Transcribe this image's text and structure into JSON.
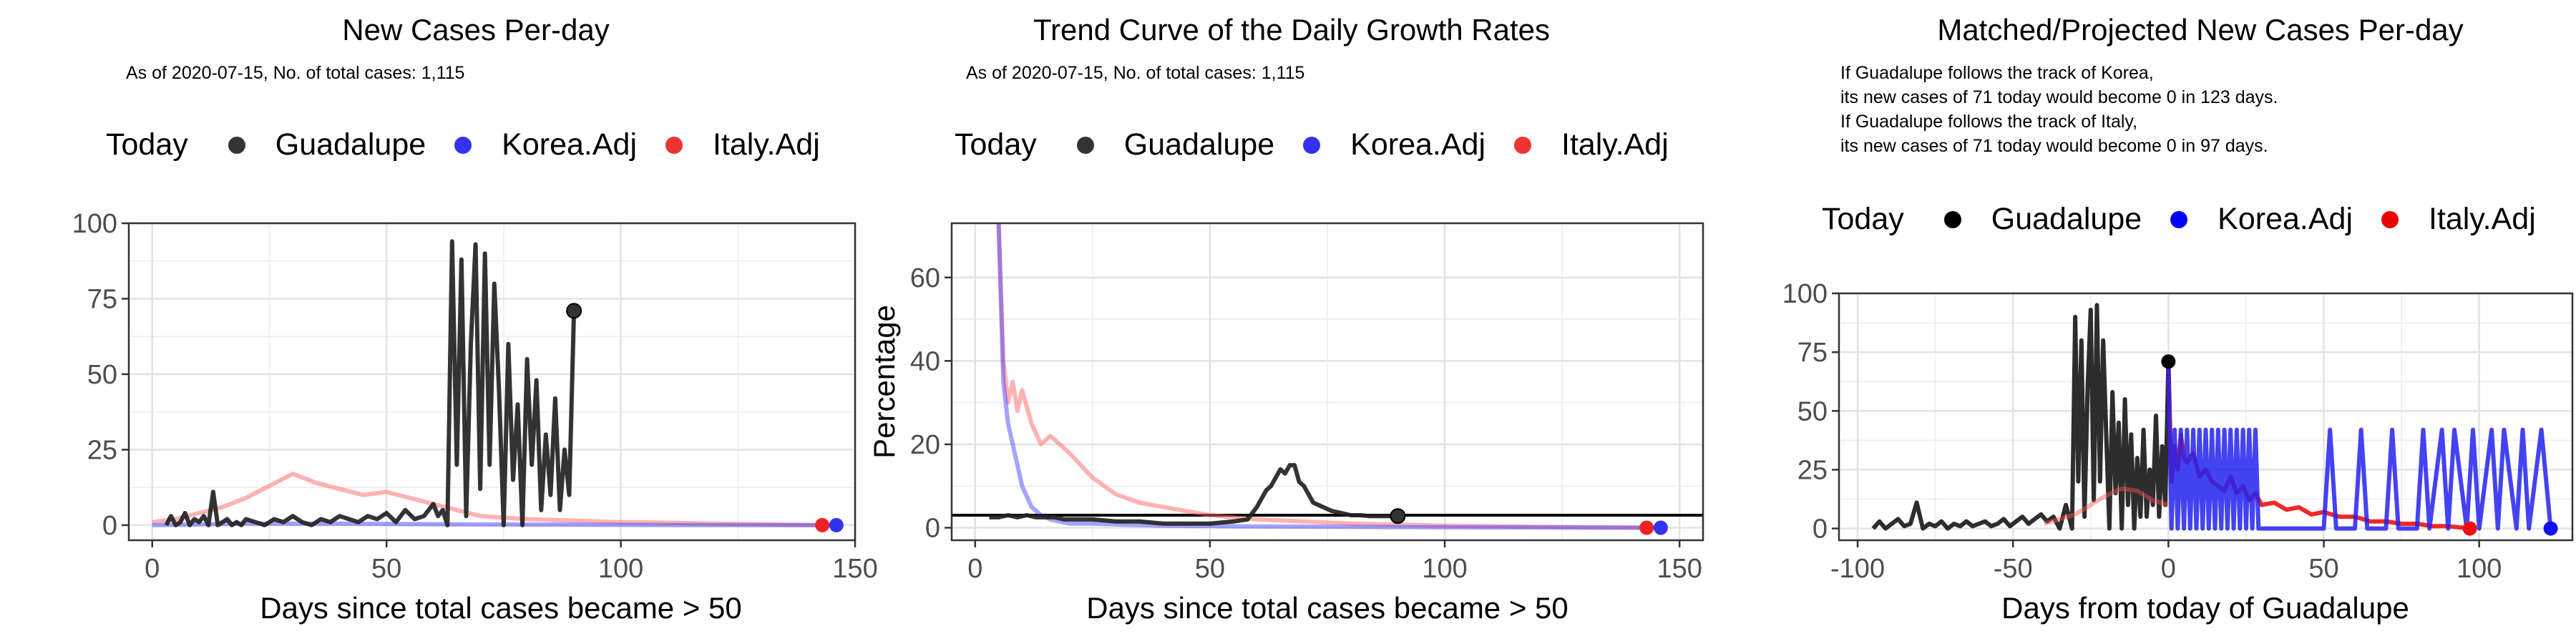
{
  "chart_data": [
    {
      "type": "line",
      "title": "New Cases Per-day",
      "subtitle": "As of 2020-07-15, No. of total cases: 1,115",
      "legend_title": "Today",
      "legend": [
        "Guadalupe",
        "Korea.Adj",
        "Italy.Adj"
      ],
      "legend_placement": "top",
      "xlabel": "Days since total cases became > 50",
      "ylabel": "",
      "xlim": [
        -5,
        150
      ],
      "ylim": [
        -5,
        100
      ],
      "xticks": [
        0,
        50,
        100,
        150
      ],
      "yticks": [
        0,
        25,
        50,
        75,
        100
      ],
      "grid": true,
      "colors": {
        "Guadalupe": "#333333",
        "Korea.Adj": "#3333ee",
        "Italy.Adj": "#ee3333"
      },
      "series": [
        {
          "name": "Italy.Adj",
          "x": [
            0,
            5,
            10,
            15,
            20,
            25,
            30,
            35,
            40,
            45,
            50,
            55,
            60,
            65,
            70,
            80,
            90,
            100,
            110,
            120,
            130,
            143
          ],
          "y": [
            1,
            2,
            4,
            6,
            9,
            13,
            17,
            14,
            12,
            10,
            11,
            9,
            7,
            5,
            3,
            2,
            1.5,
            1,
            0.8,
            0.5,
            0.3,
            0
          ]
        },
        {
          "name": "Korea.Adj",
          "x": [
            0,
            20,
            40,
            60,
            80,
            100,
            120,
            146
          ],
          "y": [
            0,
            0.5,
            0.5,
            0.3,
            0.2,
            0.1,
            0,
            0
          ]
        },
        {
          "name": "Guadalupe",
          "x": [
            3,
            4,
            5,
            6,
            7,
            8,
            9,
            10,
            11,
            12,
            13,
            14,
            15,
            16,
            17,
            18,
            19,
            20,
            22,
            24,
            26,
            28,
            30,
            32,
            34,
            36,
            38,
            40,
            42,
            44,
            46,
            48,
            50,
            52,
            54,
            56,
            58,
            60,
            61,
            62,
            63,
            64,
            65,
            66,
            67,
            68,
            69,
            70,
            71,
            72,
            73,
            74,
            75,
            76,
            77,
            78,
            79,
            80,
            81,
            82,
            83,
            84,
            85,
            86,
            87,
            88,
            89,
            90
          ],
          "y": [
            0,
            3,
            0,
            1,
            4,
            0,
            2,
            1,
            3,
            0,
            11,
            0,
            1,
            2,
            0,
            1,
            0,
            2,
            1,
            0,
            2,
            1,
            3,
            1,
            0,
            2,
            1,
            3,
            2,
            1,
            3,
            2,
            4,
            1,
            5,
            2,
            3,
            7,
            3,
            5,
            0,
            94,
            20,
            88,
            3,
            60,
            93,
            12,
            90,
            20,
            80,
            45,
            0,
            60,
            15,
            40,
            0,
            55,
            20,
            48,
            5,
            30,
            10,
            42,
            5,
            25,
            10,
            71
          ]
        }
      ],
      "today_points": [
        {
          "name": "Guadalupe",
          "x": 90,
          "y": 71
        },
        {
          "name": "Italy.Adj",
          "x": 143,
          "y": 0
        },
        {
          "name": "Korea.Adj",
          "x": 146,
          "y": 0
        }
      ]
    },
    {
      "type": "line",
      "title": "Trend Curve of the Daily Growth Rates",
      "subtitle": "As of 2020-07-15, No. of total cases: 1,115",
      "legend_title": "Today",
      "legend": [
        "Guadalupe",
        "Korea.Adj",
        "Italy.Adj"
      ],
      "legend_placement": "top",
      "xlabel": "Days since total cases became > 50",
      "ylabel": "Percentage",
      "xlim": [
        -5,
        155
      ],
      "ylim": [
        -3,
        73
      ],
      "xticks": [
        0,
        50,
        100,
        150
      ],
      "yticks": [
        0,
        20,
        40,
        60
      ],
      "grid": true,
      "hline": 3,
      "series": [
        {
          "name": "Italy.Adj",
          "x": [
            5,
            6,
            7,
            8,
            9,
            10,
            12,
            14,
            16,
            18,
            20,
            25,
            30,
            35,
            40,
            45,
            50,
            60,
            70,
            80,
            100,
            120,
            143
          ],
          "y": [
            73,
            40,
            30,
            35,
            28,
            33,
            25,
            20,
            22,
            20,
            18,
            12,
            8,
            6,
            5,
            4,
            3,
            2,
            1.5,
            1,
            0.5,
            0.2,
            0
          ]
        },
        {
          "name": "Korea.Adj",
          "x": [
            5,
            6,
            7,
            8,
            9,
            10,
            12,
            14,
            16,
            18,
            20,
            25,
            30,
            40,
            60,
            80,
            100,
            146
          ],
          "y": [
            73,
            35,
            25,
            20,
            15,
            10,
            5,
            3,
            2,
            1.5,
            1,
            1,
            0.8,
            0.5,
            0.3,
            0.2,
            0.1,
            0
          ]
        },
        {
          "name": "Guadalupe",
          "x": [
            3,
            5,
            7,
            9,
            11,
            13,
            15,
            17,
            19,
            21,
            25,
            30,
            35,
            40,
            45,
            50,
            55,
            58,
            60,
            61,
            62,
            63,
            64,
            65,
            66,
            67,
            68,
            69,
            70,
            72,
            74,
            76,
            78,
            80,
            82,
            84,
            86,
            88,
            90
          ],
          "y": [
            2.5,
            2.5,
            3,
            2.5,
            3,
            2.5,
            2.5,
            2.5,
            2,
            2,
            2,
            1.5,
            1.5,
            1,
            1,
            1,
            1.5,
            2,
            5,
            7,
            9,
            10,
            12,
            14,
            13,
            15,
            15,
            11,
            10,
            6,
            5,
            4,
            3.5,
            3,
            3,
            2.8,
            2.8,
            2.8,
            2.8
          ]
        }
      ],
      "today_points": [
        {
          "name": "Guadalupe",
          "x": 90,
          "y": 2.8
        },
        {
          "name": "Italy.Adj",
          "x": 143,
          "y": 0
        },
        {
          "name": "Korea.Adj",
          "x": 146,
          "y": 0
        }
      ]
    },
    {
      "type": "line",
      "title": "Matched/Projected New Cases Per-day",
      "subtitle_lines": [
        "If Guadalupe follows the track of Korea,",
        "its new cases of 71 today would become 0 in 123 days.",
        "If Guadalupe follows the track of Italy,",
        "its new cases of 71 today would become 0 in 97 days."
      ],
      "legend_title": "Today",
      "legend": [
        "Guadalupe",
        "Korea.Adj",
        "Italy.Adj"
      ],
      "legend_placement": "top",
      "xlabel": "Days from today of Guadalupe",
      "ylabel": "",
      "xlim": [
        -106,
        130
      ],
      "ylim": [
        -5,
        100
      ],
      "xticks": [
        -100,
        -50,
        0,
        50,
        100
      ],
      "yticks": [
        0,
        25,
        50,
        75,
        100
      ],
      "grid": true,
      "colors": {
        "Guadalupe": "#000000",
        "Korea.Adj": "#0000ff",
        "Italy.Adj": "#ee0000"
      },
      "series": [
        {
          "name": "Guadalupe",
          "x": [
            -95,
            -93,
            -91,
            -89,
            -87,
            -85,
            -83,
            -81,
            -79,
            -77,
            -75,
            -73,
            -71,
            -69,
            -67,
            -65,
            -63,
            -61,
            -59,
            -57,
            -55,
            -53,
            -51,
            -49,
            -47,
            -45,
            -43,
            -41,
            -39,
            -37,
            -35,
            -33,
            -31,
            -30,
            -29,
            -28,
            -27,
            -26,
            -25,
            -24,
            -23,
            -22,
            -21,
            -20,
            -19,
            -18,
            -17,
            -16,
            -15,
            -14,
            -13,
            -12,
            -11,
            -10,
            -9,
            -8,
            -7,
            -6,
            -5,
            -4,
            -3,
            -2,
            -1,
            0
          ],
          "y": [
            0,
            3,
            0,
            2,
            4,
            1,
            2,
            11,
            0,
            2,
            1,
            3,
            0,
            2,
            1,
            3,
            1,
            2,
            3,
            1,
            2,
            4,
            1,
            3,
            5,
            2,
            4,
            6,
            3,
            5,
            0,
            10,
            0,
            90,
            20,
            80,
            5,
            60,
            93,
            12,
            95,
            20,
            80,
            40,
            0,
            58,
            15,
            45,
            0,
            55,
            10,
            40,
            0,
            30,
            5,
            42,
            5,
            25,
            10,
            48,
            5,
            35,
            10,
            71
          ]
        },
        {
          "name": "Italy.Adj",
          "x": [
            0,
            1,
            2,
            3,
            4,
            5,
            6,
            8,
            10,
            12,
            14,
            16,
            18,
            20,
            22,
            24,
            26,
            28,
            30,
            34,
            38,
            42,
            46,
            50,
            55,
            60,
            65,
            70,
            75,
            80,
            85,
            90,
            97
          ],
          "y": [
            71,
            20,
            35,
            25,
            40,
            30,
            28,
            32,
            22,
            25,
            20,
            18,
            16,
            22,
            15,
            18,
            12,
            15,
            10,
            11,
            8,
            9,
            6,
            7,
            5,
            5,
            3,
            3,
            2,
            2,
            1,
            1,
            0
          ]
        },
        {
          "name": "Korea.Adj",
          "x": [
            0,
            1,
            2,
            3,
            4,
            5,
            6,
            7,
            8,
            9,
            10,
            11,
            12,
            13,
            14,
            15,
            16,
            17,
            18,
            19,
            20,
            21,
            22,
            23,
            24,
            25,
            26,
            27,
            28,
            29,
            30,
            40,
            50,
            52,
            54,
            60,
            62,
            64,
            70,
            72,
            74,
            80,
            82,
            84,
            88,
            90,
            92,
            96,
            98,
            100,
            104,
            106,
            108,
            112,
            114,
            116,
            120,
            123
          ],
          "y": [
            71,
            0,
            42,
            0,
            42,
            0,
            42,
            0,
            42,
            0,
            42,
            0,
            42,
            0,
            42,
            0,
            42,
            0,
            42,
            0,
            42,
            0,
            42,
            0,
            42,
            0,
            42,
            0,
            42,
            0,
            0,
            0,
            0,
            42,
            0,
            0,
            42,
            0,
            0,
            42,
            0,
            0,
            42,
            0,
            42,
            0,
            42,
            0,
            42,
            0,
            42,
            0,
            42,
            0,
            42,
            0,
            42,
            0
          ]
        },
        {
          "name": "Italy.Adj.left",
          "x": [
            -40,
            -35,
            -30,
            -25,
            -20,
            -15,
            -10,
            -5,
            0
          ],
          "y": [
            2,
            4,
            6,
            10,
            14,
            17,
            16,
            12,
            10
          ]
        }
      ],
      "today_points": [
        {
          "name": "Guadalupe",
          "x": 0,
          "y": 71
        },
        {
          "name": "Italy.Adj",
          "x": 97,
          "y": 0
        },
        {
          "name": "Korea.Adj",
          "x": 123,
          "y": 0
        }
      ]
    }
  ]
}
